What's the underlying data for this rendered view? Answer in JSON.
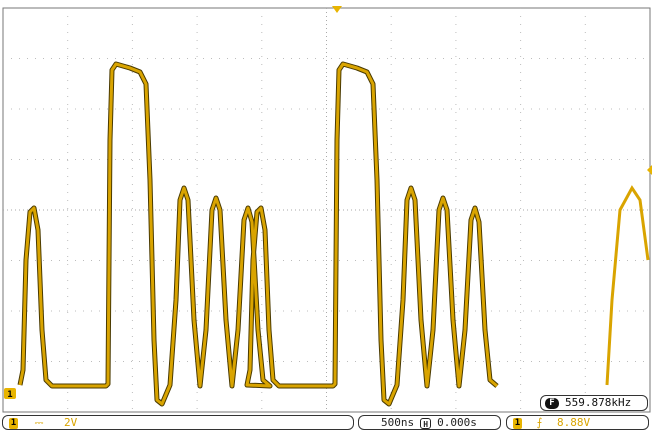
{
  "colors": {
    "trace": "#d9a400",
    "trace_dark": "#4a3a00",
    "grid": "#bdbdbd"
  },
  "icons": {
    "channel": "channel-1-icon",
    "dc_coupling": "dc-coupling-icon",
    "horizontal": "horizontal-h-icon",
    "trigger_slope": "rising-edge-icon",
    "frequency": "frequency-f-icon"
  },
  "markers": {
    "channel_ground": "1"
  },
  "status": {
    "ch1": {
      "label": "1",
      "coupling_symbol": "⎓",
      "scale": "2V"
    },
    "timebase": {
      "scale": "500ns",
      "h_label": "H",
      "position": "0.000s"
    },
    "trigger": {
      "source": "1",
      "slope_symbol": "⨍",
      "level": "8.88V"
    }
  },
  "measurement": {
    "badge": "F",
    "value": "559.878kHz"
  }
}
